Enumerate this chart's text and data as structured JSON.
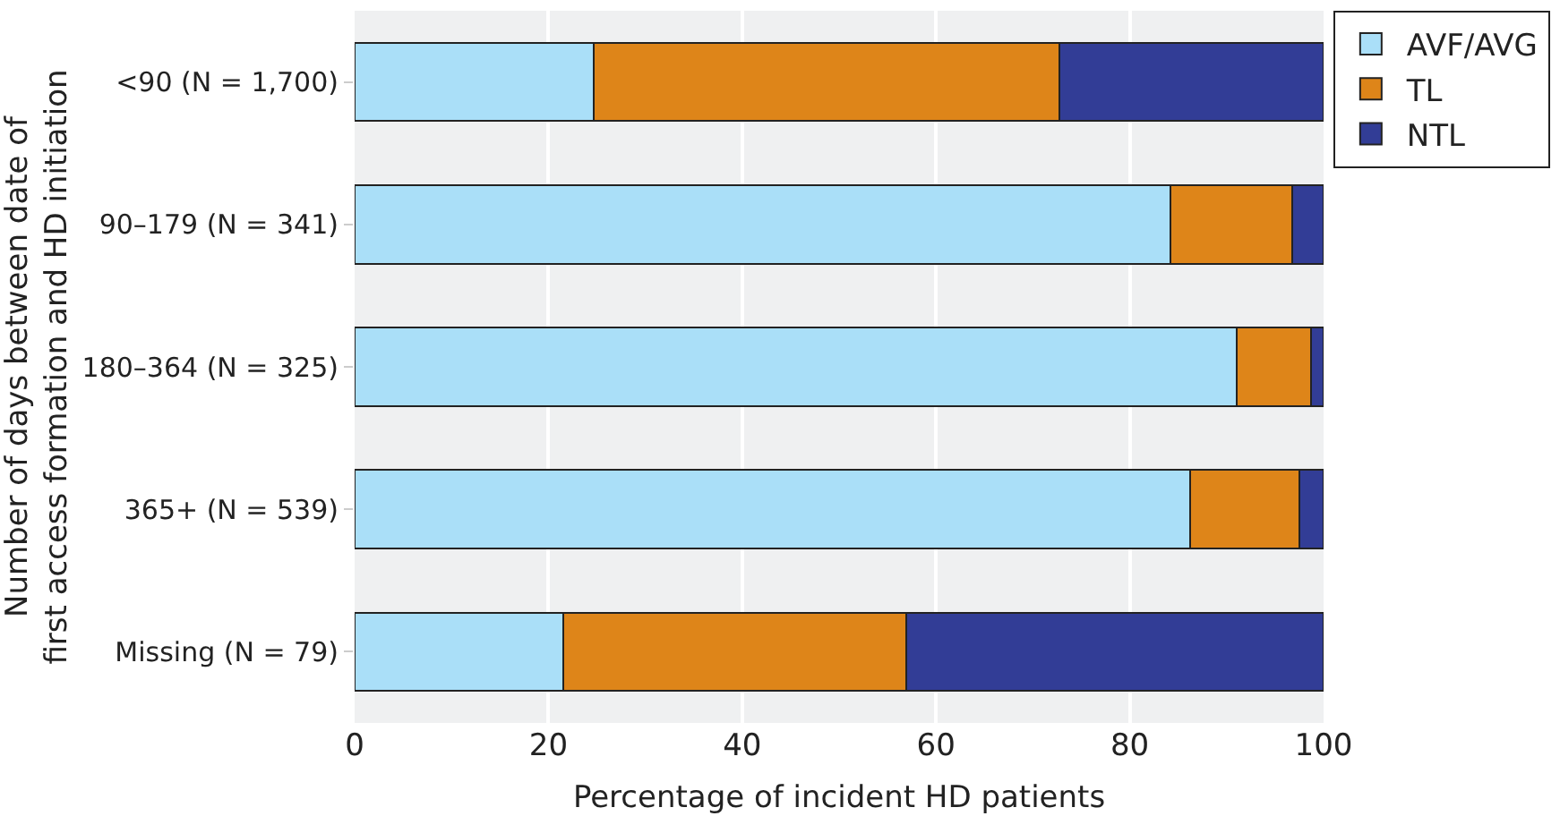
{
  "chart_data": {
    "type": "bar",
    "orientation": "horizontal",
    "stacked": true,
    "categories": [
      "<90 (N = 1,700)",
      "90–179 (N = 341)",
      "180–364 (N = 325)",
      "365+ (N = 539)",
      "Missing (N = 79)"
    ],
    "series": [
      {
        "name": "AVF/AVG",
        "color": "#aadff8",
        "values": [
          24.7,
          84.2,
          91.0,
          86.2,
          21.5
        ]
      },
      {
        "name": "TL",
        "color": "#de8519",
        "values": [
          48.0,
          12.6,
          7.7,
          11.3,
          35.4
        ]
      },
      {
        "name": "NTL",
        "color": "#323d96",
        "values": [
          27.3,
          3.2,
          1.3,
          2.5,
          43.1
        ]
      }
    ],
    "xlabel": "Percentage of incident HD patients",
    "ylabel": "Number of days between date of\nfirst access formation and HD initiation",
    "xlim": [
      0,
      100
    ],
    "xticks": [
      0,
      20,
      40,
      60,
      80,
      100
    ],
    "grid": "x",
    "legend": "right"
  }
}
